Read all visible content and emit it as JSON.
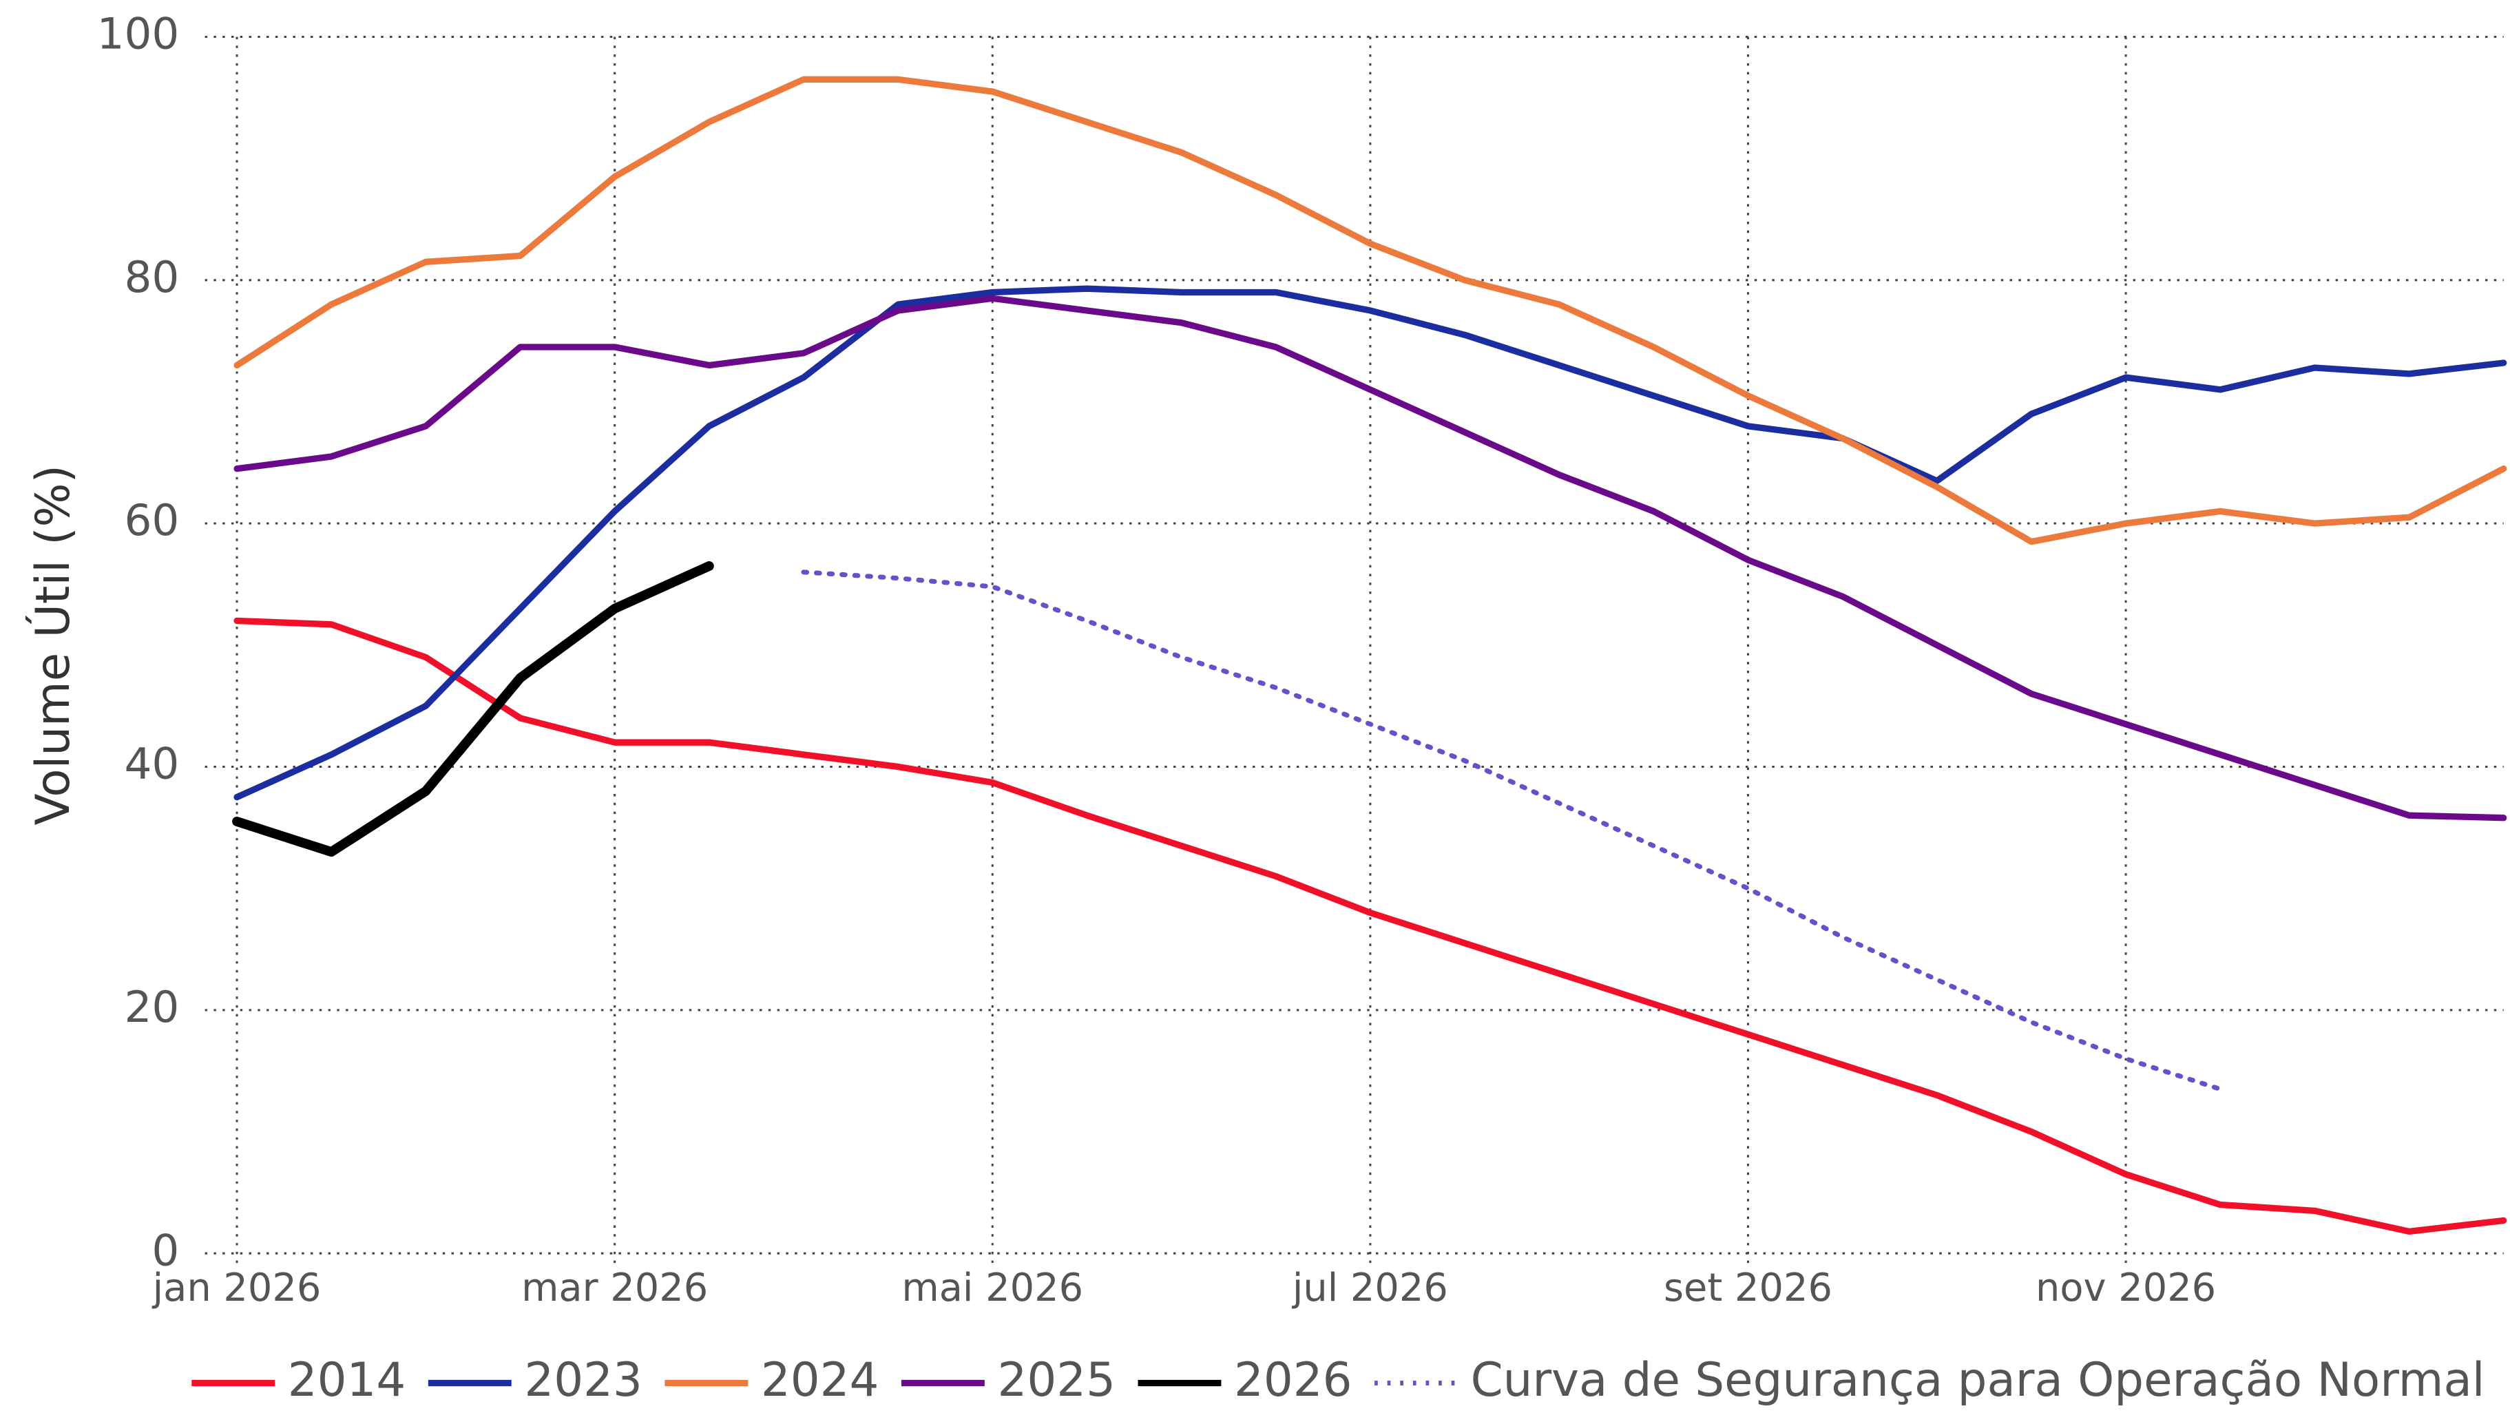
{
  "chart_data": {
    "type": "line",
    "y_label": "Volume Útil (%)",
    "x": [
      0,
      0.5,
      1,
      1.5,
      2,
      2.5,
      3,
      3.5,
      4,
      4.5,
      5,
      5.5,
      6,
      6.5,
      7,
      7.5,
      8,
      8.5,
      9,
      9.5,
      10,
      10.5,
      11,
      11.5,
      12
    ],
    "xlim": [
      0,
      12
    ],
    "xticks": [
      {
        "value": 0,
        "label": "jan 2026"
      },
      {
        "value": 2,
        "label": "mar 2026"
      },
      {
        "value": 4,
        "label": "mai 2026"
      },
      {
        "value": 6,
        "label": "jul 2026"
      },
      {
        "value": 8,
        "label": "set 2026"
      },
      {
        "value": 10,
        "label": "nov 2026"
      }
    ],
    "ylim": [
      0,
      100
    ],
    "yticks": [
      0,
      20,
      40,
      60,
      80,
      100
    ],
    "grid": true,
    "legend": "bottom",
    "series": [
      {
        "name": "2014",
        "color": "#f0102a",
        "values": [
          52,
          51.7,
          49,
          44,
          42,
          42,
          41,
          40,
          38.7,
          36,
          33.5,
          31,
          28,
          25.5,
          23,
          20.5,
          18,
          15.5,
          13,
          10,
          6.5,
          4,
          3.5,
          1.8,
          2.7
        ]
      },
      {
        "name": "2023",
        "color": "#1c2da0",
        "values": [
          37.5,
          41,
          45,
          53,
          61,
          68,
          72,
          78,
          79,
          79.3,
          79,
          79,
          77.5,
          75.5,
          73,
          70.5,
          68,
          67,
          63.5,
          69,
          72,
          71,
          72.8,
          72.3,
          73.2
        ]
      },
      {
        "name": "2024",
        "color": "#ec7a3c",
        "values": [
          73,
          78,
          81.5,
          82,
          88.5,
          93,
          96.5,
          96.5,
          95.5,
          93,
          90.5,
          87,
          83,
          80,
          78,
          74.5,
          70.5,
          67,
          63,
          58.5,
          60,
          61,
          60,
          60.5,
          64.5
        ]
      },
      {
        "name": "2025",
        "color": "#6a0a8a",
        "values": [
          64.5,
          65.5,
          68,
          74.5,
          74.5,
          73,
          74,
          77.5,
          78.5,
          77.5,
          76.5,
          74.5,
          71,
          67.5,
          64,
          61,
          57,
          54,
          50,
          46,
          43.5,
          41,
          38.5,
          36,
          35.8
        ]
      },
      {
        "name": "2026",
        "color": "#000000",
        "values": [
          35.5,
          33,
          38,
          47.3,
          53,
          56.5,
          null,
          null,
          null,
          null,
          null,
          null,
          null,
          null,
          null,
          null,
          null,
          null,
          null,
          null,
          null,
          null,
          null,
          null,
          null
        ]
      },
      {
        "name": "Curva de Segurança para Operação Normal",
        "color": "#6a4fc8",
        "dash": "dotted",
        "values": [
          null,
          null,
          null,
          null,
          null,
          null,
          56,
          55.5,
          54.8,
          52,
          49,
          46.5,
          43.5,
          40.5,
          37,
          33.5,
          30,
          26,
          22.5,
          19,
          16,
          13.5,
          null,
          null,
          null
        ]
      }
    ]
  }
}
